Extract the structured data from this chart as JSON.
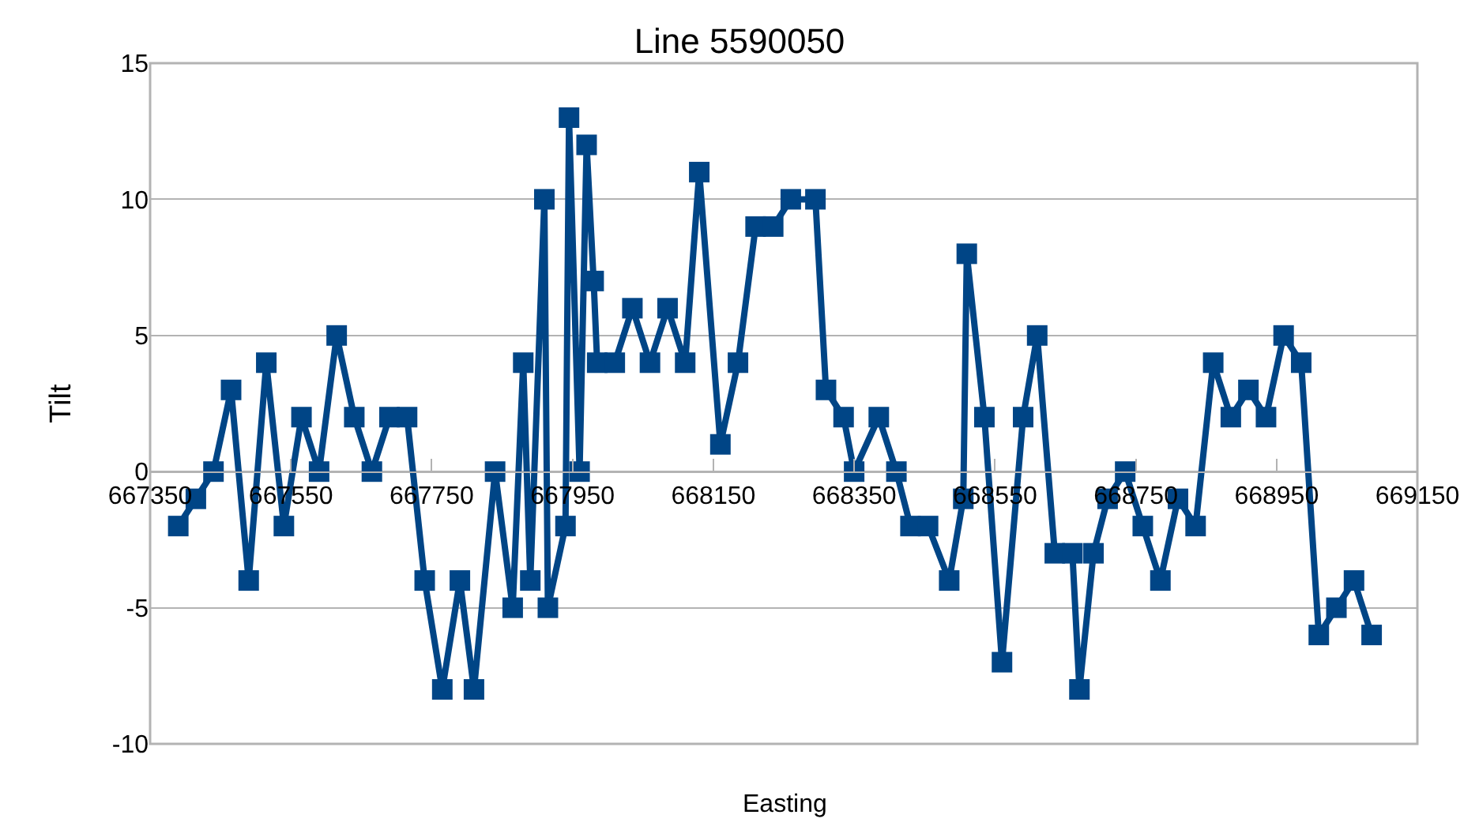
{
  "chart_data": {
    "type": "line",
    "title": "Line 5590050",
    "xlabel": "Easting",
    "ylabel": "Tilt",
    "x": [
      667390,
      667415,
      667440,
      667465,
      667490,
      667515,
      667540,
      667565,
      667590,
      667615,
      667640,
      667665,
      667690,
      667715,
      667740,
      667765,
      667790,
      667810,
      667840,
      667865,
      667880,
      667890,
      667910,
      667915,
      667940,
      667945,
      667960,
      667970,
      667980,
      667985,
      668010,
      668035,
      668060,
      668085,
      668110,
      668130,
      668160,
      668185,
      668210,
      668235,
      668260,
      668295,
      668310,
      668335,
      668350,
      668385,
      668410,
      668430,
      668455,
      668485,
      668505,
      668510,
      668535,
      668560,
      668590,
      668610,
      668635,
      668660,
      668670,
      668690,
      668710,
      668735,
      668760,
      668785,
      668810,
      668835,
      668860,
      668885,
      668910,
      668935,
      668960,
      668985,
      669010,
      669035,
      669060,
      669085
    ],
    "series": [
      {
        "color": "#004586",
        "values": [
          -2,
          -1,
          0,
          3,
          -4,
          4,
          -2,
          2,
          0,
          5,
          2,
          0,
          2,
          2,
          -4,
          -8,
          -4,
          -8,
          0,
          -5,
          4,
          -4,
          10,
          -5,
          -2,
          13,
          0,
          12,
          7,
          4,
          4,
          6,
          4,
          6,
          4,
          11,
          1,
          4,
          9,
          9,
          10,
          10,
          3,
          2,
          0,
          2,
          0,
          -2,
          -2,
          -4,
          -1,
          8,
          2,
          -7,
          2,
          5,
          -3,
          -3,
          -8,
          -3,
          -1,
          0,
          -2,
          -4,
          -1,
          -2,
          4,
          2,
          3,
          2,
          5,
          4,
          -6,
          -5,
          -4,
          -6
        ]
      }
    ],
    "xlim": [
      667350,
      669150
    ],
    "xticks": [
      667350,
      667550,
      667750,
      667950,
      668150,
      668350,
      668550,
      668750,
      668950,
      669150
    ],
    "ylim": [
      -10,
      15
    ],
    "yticks": [
      -10,
      -5,
      0,
      5,
      10,
      15
    ],
    "grid": "y",
    "legend": false,
    "marker": "square",
    "line_style": "solid"
  }
}
